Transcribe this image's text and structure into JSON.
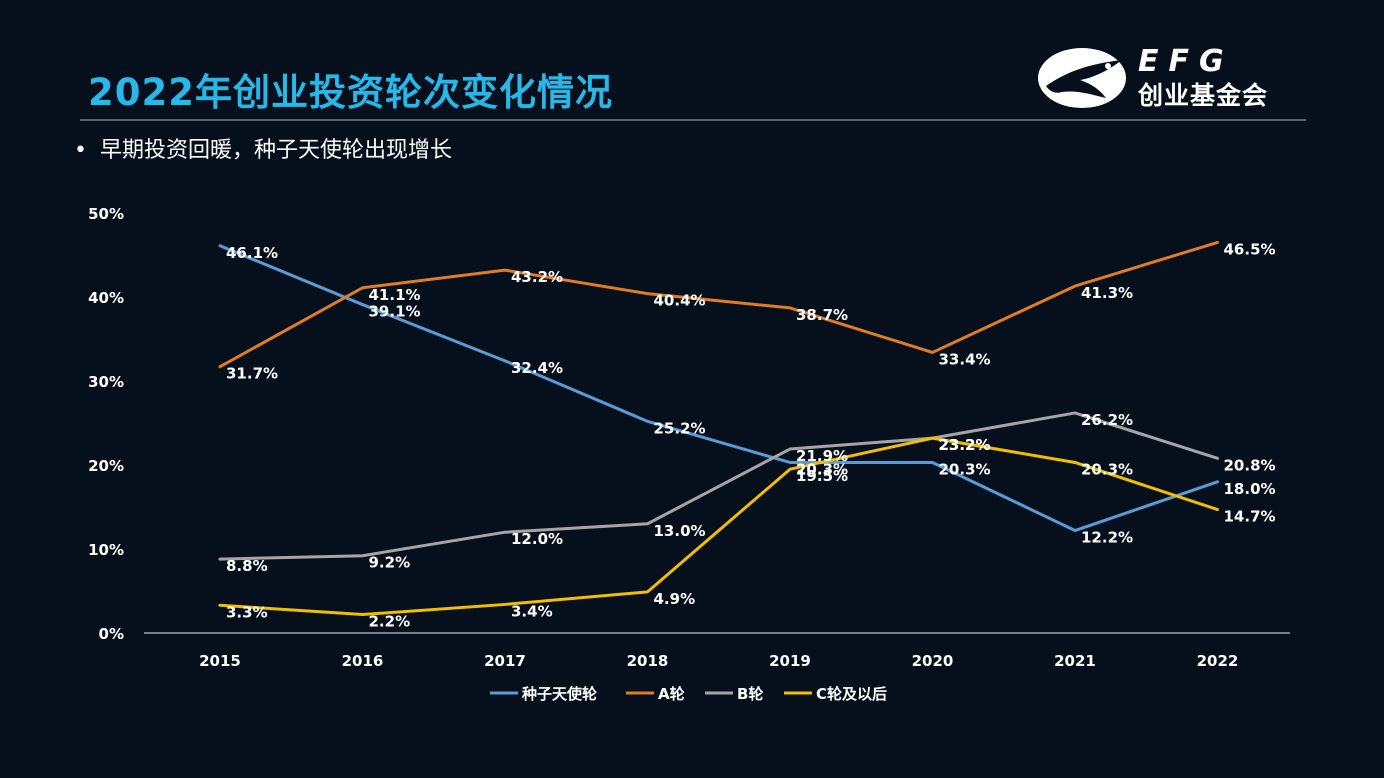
{
  "header": {
    "title": "2022年创业投资轮次变化情况",
    "bullet": "早期投资回暖，种子天使轮出现增长"
  },
  "logo": {
    "brand": "EFG",
    "name_cn": "创业基金会"
  },
  "chart_data": {
    "type": "line",
    "categories": [
      "2015",
      "2016",
      "2017",
      "2018",
      "2019",
      "2020",
      "2021",
      "2022"
    ],
    "ylim": [
      0,
      50
    ],
    "yticks": [
      "0%",
      "10%",
      "20%",
      "30%",
      "40%",
      "50%"
    ],
    "ytick_values": [
      0,
      10,
      20,
      30,
      40,
      50
    ],
    "grid": false,
    "legend_position": "bottom",
    "series": [
      {
        "name": "种子天使轮",
        "color": "#5b9bd5",
        "values": [
          46.1,
          39.1,
          32.4,
          25.2,
          20.3,
          20.3,
          12.2,
          18.0
        ],
        "labels": [
          "46.1%",
          "39.1%",
          "32.4%",
          "25.2%",
          "20.3%",
          "20.3%",
          "12.2%",
          "18.0%"
        ]
      },
      {
        "name": "A轮",
        "color": "#e07b26",
        "values": [
          31.7,
          41.1,
          43.2,
          40.4,
          38.7,
          33.4,
          41.3,
          46.5
        ],
        "labels": [
          "31.7%",
          "41.1%",
          "43.2%",
          "40.4%",
          "38.7%",
          "33.4%",
          "41.3%",
          "46.5%"
        ]
      },
      {
        "name": "B轮",
        "color": "#a5a5a5",
        "values": [
          8.8,
          9.2,
          12.0,
          13.0,
          21.9,
          23.2,
          26.2,
          20.8
        ],
        "labels": [
          "8.8%",
          "9.2%",
          "12.0%",
          "13.0%",
          "21.9%",
          "23.2%",
          "26.2%",
          "20.8%"
        ]
      },
      {
        "name": "C轮及以后",
        "color": "#f4be00",
        "values": [
          3.3,
          2.2,
          3.4,
          4.9,
          19.5,
          23.2,
          20.3,
          14.7
        ],
        "labels": [
          "3.3%",
          "2.2%",
          "3.4%",
          "4.9%",
          "19.5%",
          "23.2%",
          "20.3%",
          "14.7%"
        ]
      }
    ]
  }
}
